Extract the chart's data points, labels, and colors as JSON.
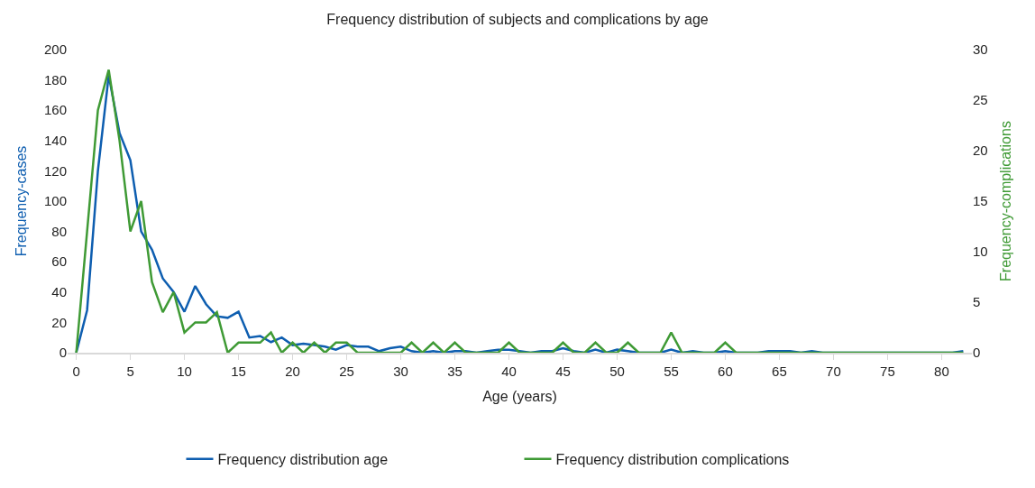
{
  "chart_data": {
    "type": "line",
    "title": "Frequency distribution of subjects and complications by age",
    "xlabel": "Age (years)",
    "ylabel": "Frequency-cases",
    "y2label": "Frequency-complications",
    "x": [
      0,
      1,
      2,
      3,
      4,
      5,
      6,
      7,
      8,
      9,
      10,
      11,
      12,
      13,
      14,
      15,
      16,
      17,
      18,
      19,
      20,
      21,
      22,
      23,
      24,
      25,
      26,
      27,
      28,
      29,
      30,
      31,
      32,
      33,
      34,
      35,
      36,
      37,
      38,
      39,
      40,
      41,
      42,
      43,
      44,
      45,
      46,
      47,
      48,
      49,
      50,
      51,
      52,
      53,
      54,
      55,
      56,
      57,
      58,
      59,
      60,
      61,
      62,
      63,
      64,
      65,
      66,
      67,
      68,
      69,
      70,
      71,
      72,
      73,
      74,
      75,
      76,
      77,
      78,
      79,
      80,
      81,
      82
    ],
    "xlim": [
      -0.8,
      82.8
    ],
    "xticks": [
      0,
      5,
      10,
      15,
      20,
      25,
      30,
      35,
      40,
      45,
      50,
      55,
      60,
      65,
      70,
      75,
      80
    ],
    "ylim": [
      0,
      200
    ],
    "yticks": [
      0,
      20,
      40,
      60,
      80,
      100,
      120,
      140,
      160,
      180,
      200
    ],
    "y2lim": [
      0,
      30
    ],
    "y2ticks": [
      0,
      5,
      10,
      15,
      20,
      25,
      30
    ],
    "legend": "bottom",
    "marker": "none",
    "line_style": "solid",
    "series": [
      {
        "name": "Frequency distribution age",
        "color": "#0e5eb0",
        "values": [
          0,
          28,
          120,
          183,
          145,
          127,
          80,
          68,
          49,
          40,
          27,
          44,
          32,
          24,
          23,
          27,
          10,
          11,
          7,
          10,
          5,
          6,
          5,
          4,
          2,
          5,
          4,
          4,
          1,
          3,
          4,
          1,
          0,
          1,
          0,
          1,
          1,
          0,
          1,
          2,
          2,
          1,
          0,
          1,
          1,
          3,
          1,
          0,
          2,
          0,
          2,
          1,
          0,
          0,
          0,
          2,
          0,
          1,
          0,
          0,
          1,
          0,
          0,
          0,
          1,
          1,
          1,
          0,
          1,
          0,
          0,
          0,
          0,
          0,
          0,
          0,
          0,
          0,
          0,
          0,
          0,
          0,
          1
        ]
      },
      {
        "name": "Frequency distribution complications",
        "color": "#3f9a35",
        "axis": "y2",
        "values": [
          0,
          12,
          24,
          28,
          21,
          12,
          15,
          7,
          4,
          6,
          2,
          3,
          3,
          4,
          0,
          1,
          1,
          1,
          2,
          0,
          1,
          0,
          1,
          0,
          1,
          1,
          0,
          0,
          0,
          0,
          0,
          1,
          0,
          1,
          0,
          1,
          0,
          0,
          0,
          0,
          1,
          0,
          0,
          0,
          0,
          1,
          0,
          0,
          1,
          0,
          0,
          1,
          0,
          0,
          0,
          2,
          0,
          0,
          0,
          0,
          1,
          0,
          0,
          0,
          0,
          0,
          0,
          0,
          0,
          0,
          0,
          0,
          0,
          0,
          0,
          0,
          0,
          0,
          0,
          0,
          0,
          0,
          0
        ]
      }
    ]
  }
}
